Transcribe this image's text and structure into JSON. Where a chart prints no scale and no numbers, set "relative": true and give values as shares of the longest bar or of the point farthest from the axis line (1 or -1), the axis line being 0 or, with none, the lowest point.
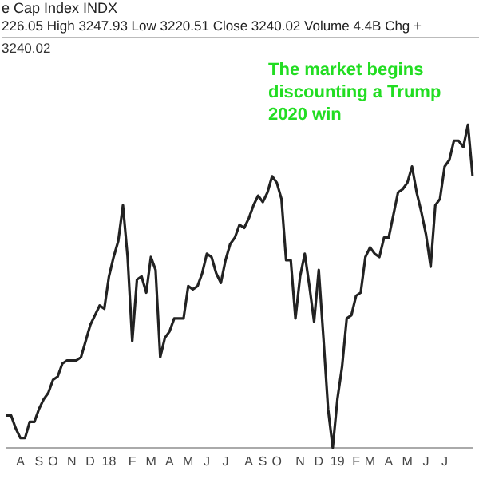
{
  "chart_data": {
    "type": "line",
    "title": "e Cap Index INDX",
    "subtitle": "226.05 High 3247.93 Low 3220.51 Close 3240.02 Volume 4.4B Chg +",
    "annotations": [
      "3240.02",
      "The market begins discounting a Trump 2020 win"
    ],
    "relative": true,
    "categories": [
      null,
      null,
      null,
      "A",
      null,
      null,
      null,
      "S",
      null,
      null,
      "O",
      null,
      null,
      null,
      "N",
      null,
      null,
      null,
      "D",
      null,
      null,
      null,
      "18",
      null,
      null,
      null,
      null,
      "F",
      null,
      null,
      null,
      "M",
      null,
      null,
      null,
      "A",
      null,
      null,
      null,
      "M",
      null,
      null,
      null,
      "J",
      null,
      null,
      null,
      "J",
      null,
      null,
      null,
      null,
      "A",
      null,
      null,
      "S",
      null,
      null,
      "O",
      null,
      null,
      null,
      null,
      "N",
      null,
      null,
      null,
      "D",
      null,
      null,
      null,
      "19",
      null,
      null,
      null,
      "F",
      null,
      null,
      "M",
      null,
      null,
      null,
      "A",
      null,
      null,
      null,
      "M",
      null,
      null,
      null,
      "J",
      null,
      null,
      null,
      "J",
      null,
      null,
      null,
      null,
      null,
      null
    ],
    "series": [
      {
        "color": "#222222",
        "values": [
          0.1,
          0.1,
          0.06,
          0.03,
          0.03,
          0.08,
          0.08,
          0.12,
          0.15,
          0.17,
          0.21,
          0.22,
          0.26,
          0.27,
          0.27,
          0.27,
          0.28,
          0.33,
          0.38,
          0.41,
          0.44,
          0.43,
          0.53,
          0.59,
          0.64,
          0.75,
          0.59,
          0.33,
          0.52,
          0.53,
          0.48,
          0.59,
          0.55,
          0.28,
          0.34,
          0.36,
          0.4,
          0.4,
          0.4,
          0.5,
          0.49,
          0.5,
          0.54,
          0.6,
          0.59,
          0.54,
          0.51,
          0.58,
          0.63,
          0.65,
          0.69,
          0.68,
          0.71,
          0.75,
          0.78,
          0.76,
          0.79,
          0.84,
          0.82,
          0.77,
          0.58,
          0.58,
          0.4,
          0.53,
          0.6,
          0.5,
          0.39,
          0.55,
          0.34,
          0.12,
          0,
          0.15,
          0.25,
          0.4,
          0.41,
          0.47,
          0.48,
          0.59,
          0.62,
          0.6,
          0.59,
          0.65,
          0.65,
          0.72,
          0.79,
          0.8,
          0.82,
          0.87,
          0.79,
          0.73,
          0.66,
          0.56,
          0.75,
          0.77,
          0.87,
          0.89,
          0.95,
          0.95,
          0.93,
          1,
          0.84
        ]
      }
    ],
    "grid": false,
    "legend": false,
    "marker": "none",
    "line_style": "solid"
  }
}
